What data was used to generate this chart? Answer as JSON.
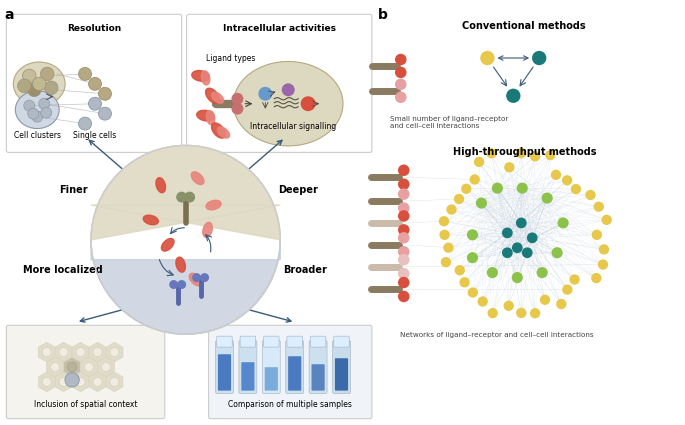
{
  "background_color": "#ffffff",
  "panel_a_label": "a",
  "panel_b_label": "b",
  "title_resolution": "Resolution",
  "title_intracellular": "Intracellular activities",
  "label_cell_clusters": "Cell clusters",
  "label_single_cells": "Single cells",
  "label_ligand_types": "Ligand types",
  "label_intracellular_signalling": "Intracellular signalling",
  "label_finer": "Finer",
  "label_deeper": "Deeper",
  "label_more_localized": "More localized",
  "label_broader": "Broader",
  "label_spatial": "Inclusion of spatial context",
  "label_multiple_samples": "Comparison of multiple samples",
  "title_conventional": "Conventional methods",
  "caption_conventional": "Small number of ligand–receptor\nand cell–cell interactions",
  "title_highthroughput": "High-throughput methods",
  "caption_highthroughput": "Networks of ligand–receptor and cell–cell interactions",
  "color_tan": "#b5a882",
  "color_beige_light": "#e8e0c8",
  "color_beige_mid": "#d4c9a8",
  "color_red": "#d94f3d",
  "color_pink": "#e8837a",
  "color_blue_gray": "#8899aa",
  "color_slate": "#6b7a8d",
  "color_gray_cell": "#b0b8c4",
  "color_teal": "#1a7a7a",
  "color_teal_light": "#2a9d8f",
  "color_yellow": "#e8c84a",
  "color_green_light": "#8bc34a",
  "color_green_mid": "#5a9e4a",
  "color_navy": "#2c4a6e",
  "color_blue_dark": "#1565c0",
  "color_blue_tube": "#4a90d9",
  "color_blue_tube_light": "#7fb3e8",
  "color_box_border": "#cccccc",
  "color_arrow": "#3a5a7a",
  "color_network_edge": "#aabbcc"
}
